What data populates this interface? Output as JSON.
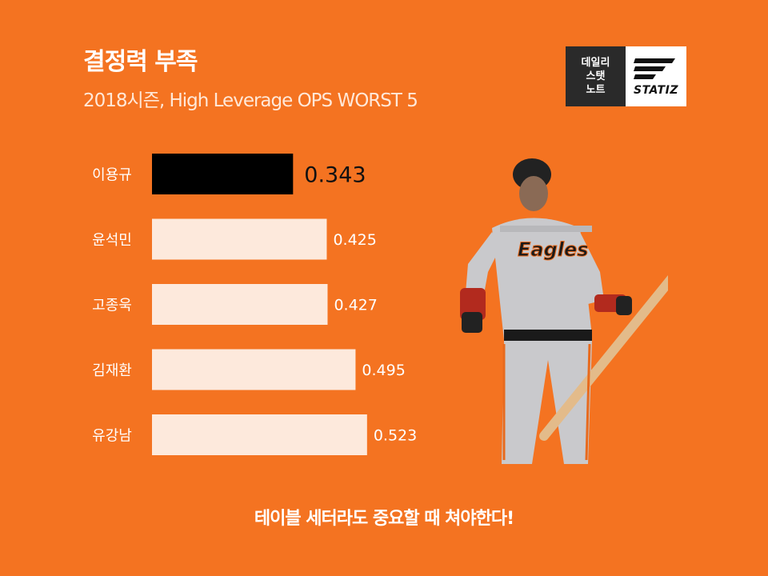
{
  "header": {
    "title": "결정력 부족",
    "subtitle": "2018시즌, High Leverage OPS WORST 5"
  },
  "logo": {
    "left_lines": [
      "데일리",
      "스탯",
      "노트"
    ],
    "wordmark": "STATIZ"
  },
  "footer": {
    "text": "테이블 세터라도 중요할 때 쳐야한다!"
  },
  "colors": {
    "background": "#f47321",
    "bar_default": "#fde9dc",
    "bar_highlight": "#000000",
    "label_text": "#ffffff",
    "highlight_value_text": "#111111"
  },
  "chart_data": {
    "type": "bar",
    "orientation": "horizontal",
    "title": "결정력 부족",
    "subtitle": "2018시즌, High Leverage OPS WORST 5",
    "categories": [
      "이용규",
      "윤석민",
      "고종욱",
      "김재환",
      "유강남"
    ],
    "values": [
      0.343,
      0.425,
      0.427,
      0.495,
      0.523
    ],
    "value_labels": [
      "0.343",
      "0.425",
      "0.427",
      "0.495",
      "0.523"
    ],
    "highlight_index": 0,
    "xlim": [
      0,
      0.6
    ],
    "grid": false,
    "legend": "none"
  }
}
